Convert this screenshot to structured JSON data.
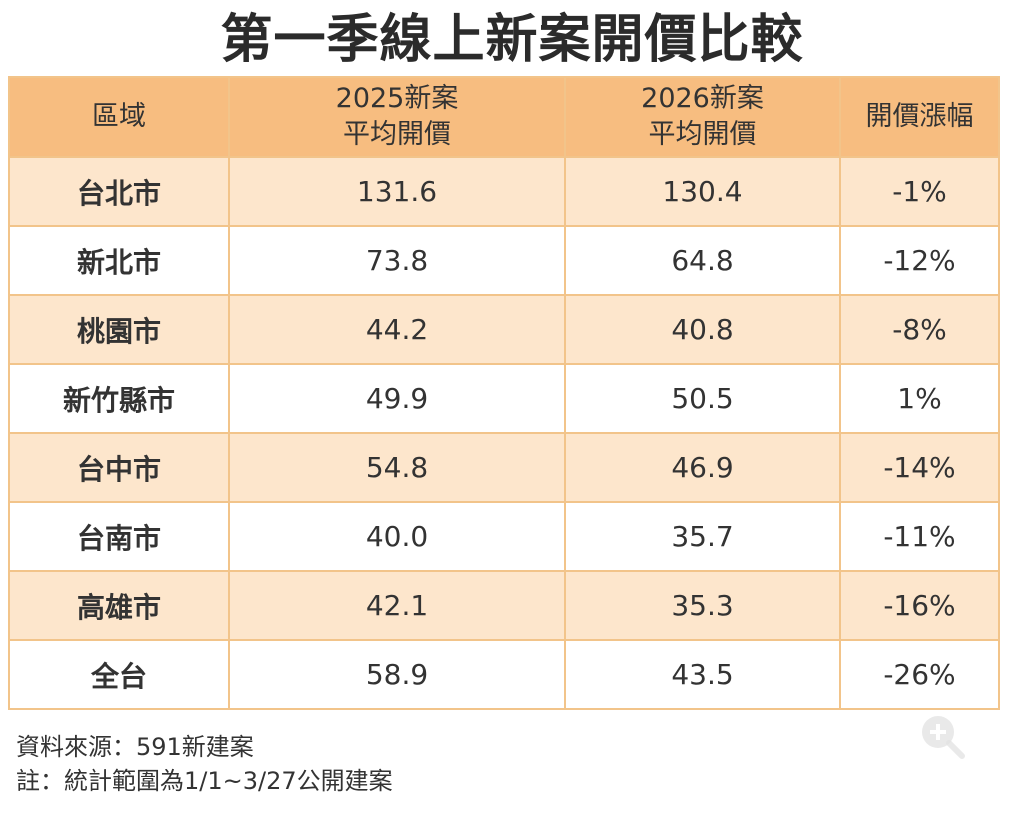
{
  "title": "第一季線上新案開價比較",
  "table": {
    "headers": [
      [
        "區域"
      ],
      [
        "2025新案",
        "平均開價"
      ],
      [
        "2026新案",
        "平均開價"
      ],
      [
        "開價漲幅"
      ]
    ],
    "rows": [
      {
        "region": "台北市",
        "v2025": "131.6",
        "v2026": "130.4",
        "change": "-1%"
      },
      {
        "region": "新北市",
        "v2025": "73.8",
        "v2026": "64.8",
        "change": "-12%"
      },
      {
        "region": "桃園市",
        "v2025": "44.2",
        "v2026": "40.8",
        "change": "-8%"
      },
      {
        "region": "新竹縣市",
        "v2025": "49.9",
        "v2026": "50.5",
        "change": "1%"
      },
      {
        "region": "台中市",
        "v2025": "54.8",
        "v2026": "46.9",
        "change": "-14%"
      },
      {
        "region": "台南市",
        "v2025": "40.0",
        "v2026": "35.7",
        "change": "-11%"
      },
      {
        "region": "高雄市",
        "v2025": "42.1",
        "v2026": "35.3",
        "change": "-16%"
      },
      {
        "region": "全台",
        "v2025": "58.9",
        "v2026": "43.5",
        "change": "-26%"
      }
    ]
  },
  "notes": {
    "source": "資料來源：591新建案",
    "footnote": "註：統計範圍為1/1~3/27公開建案"
  },
  "colors": {
    "header_bg": "#f7bd80",
    "odd_row_bg": "#fde6cc",
    "border": "#f2c48a",
    "highlight_red": "#e0202a"
  },
  "icons": {
    "zoom": "zoom-in-icon"
  }
}
